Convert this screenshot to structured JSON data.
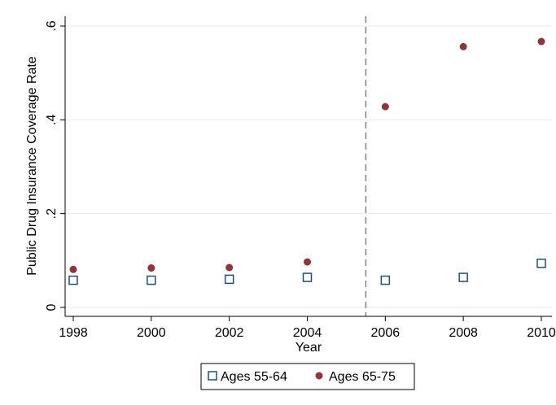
{
  "chart_data": {
    "type": "scatter",
    "title": "",
    "xlabel": "Year",
    "ylabel": "Public Drug Insurance Coverage Rate",
    "xlim": [
      1998,
      2010
    ],
    "ylim": [
      0,
      0.6
    ],
    "xticks": [
      1998,
      2000,
      2002,
      2004,
      2006,
      2008,
      2010
    ],
    "xtick_labels": [
      "1998",
      "2000",
      "2002",
      "2004",
      "2006",
      "2008",
      "2010"
    ],
    "yticks": [
      0,
      0.2,
      0.4,
      0.6
    ],
    "ytick_labels": [
      "0",
      ".2",
      ".4",
      ".6"
    ],
    "grid": true,
    "reference_line": {
      "x": 2005.5,
      "style": "dashed",
      "color": "#888888"
    },
    "legend_position": "bottom",
    "series": [
      {
        "name": "Ages 55-64",
        "marker": "hollow-square",
        "color": "#1f4e79",
        "x": [
          1998,
          2000,
          2002,
          2004,
          2006,
          2008,
          2010
        ],
        "y": [
          0.058,
          0.058,
          0.06,
          0.064,
          0.058,
          0.064,
          0.094
        ]
      },
      {
        "name": "Ages 65-75",
        "marker": "filled-circle",
        "color": "#90353b",
        "x": [
          1998,
          2000,
          2002,
          2004,
          2006,
          2008,
          2010
        ],
        "y": [
          0.081,
          0.084,
          0.085,
          0.097,
          0.428,
          0.556,
          0.567
        ]
      }
    ]
  }
}
